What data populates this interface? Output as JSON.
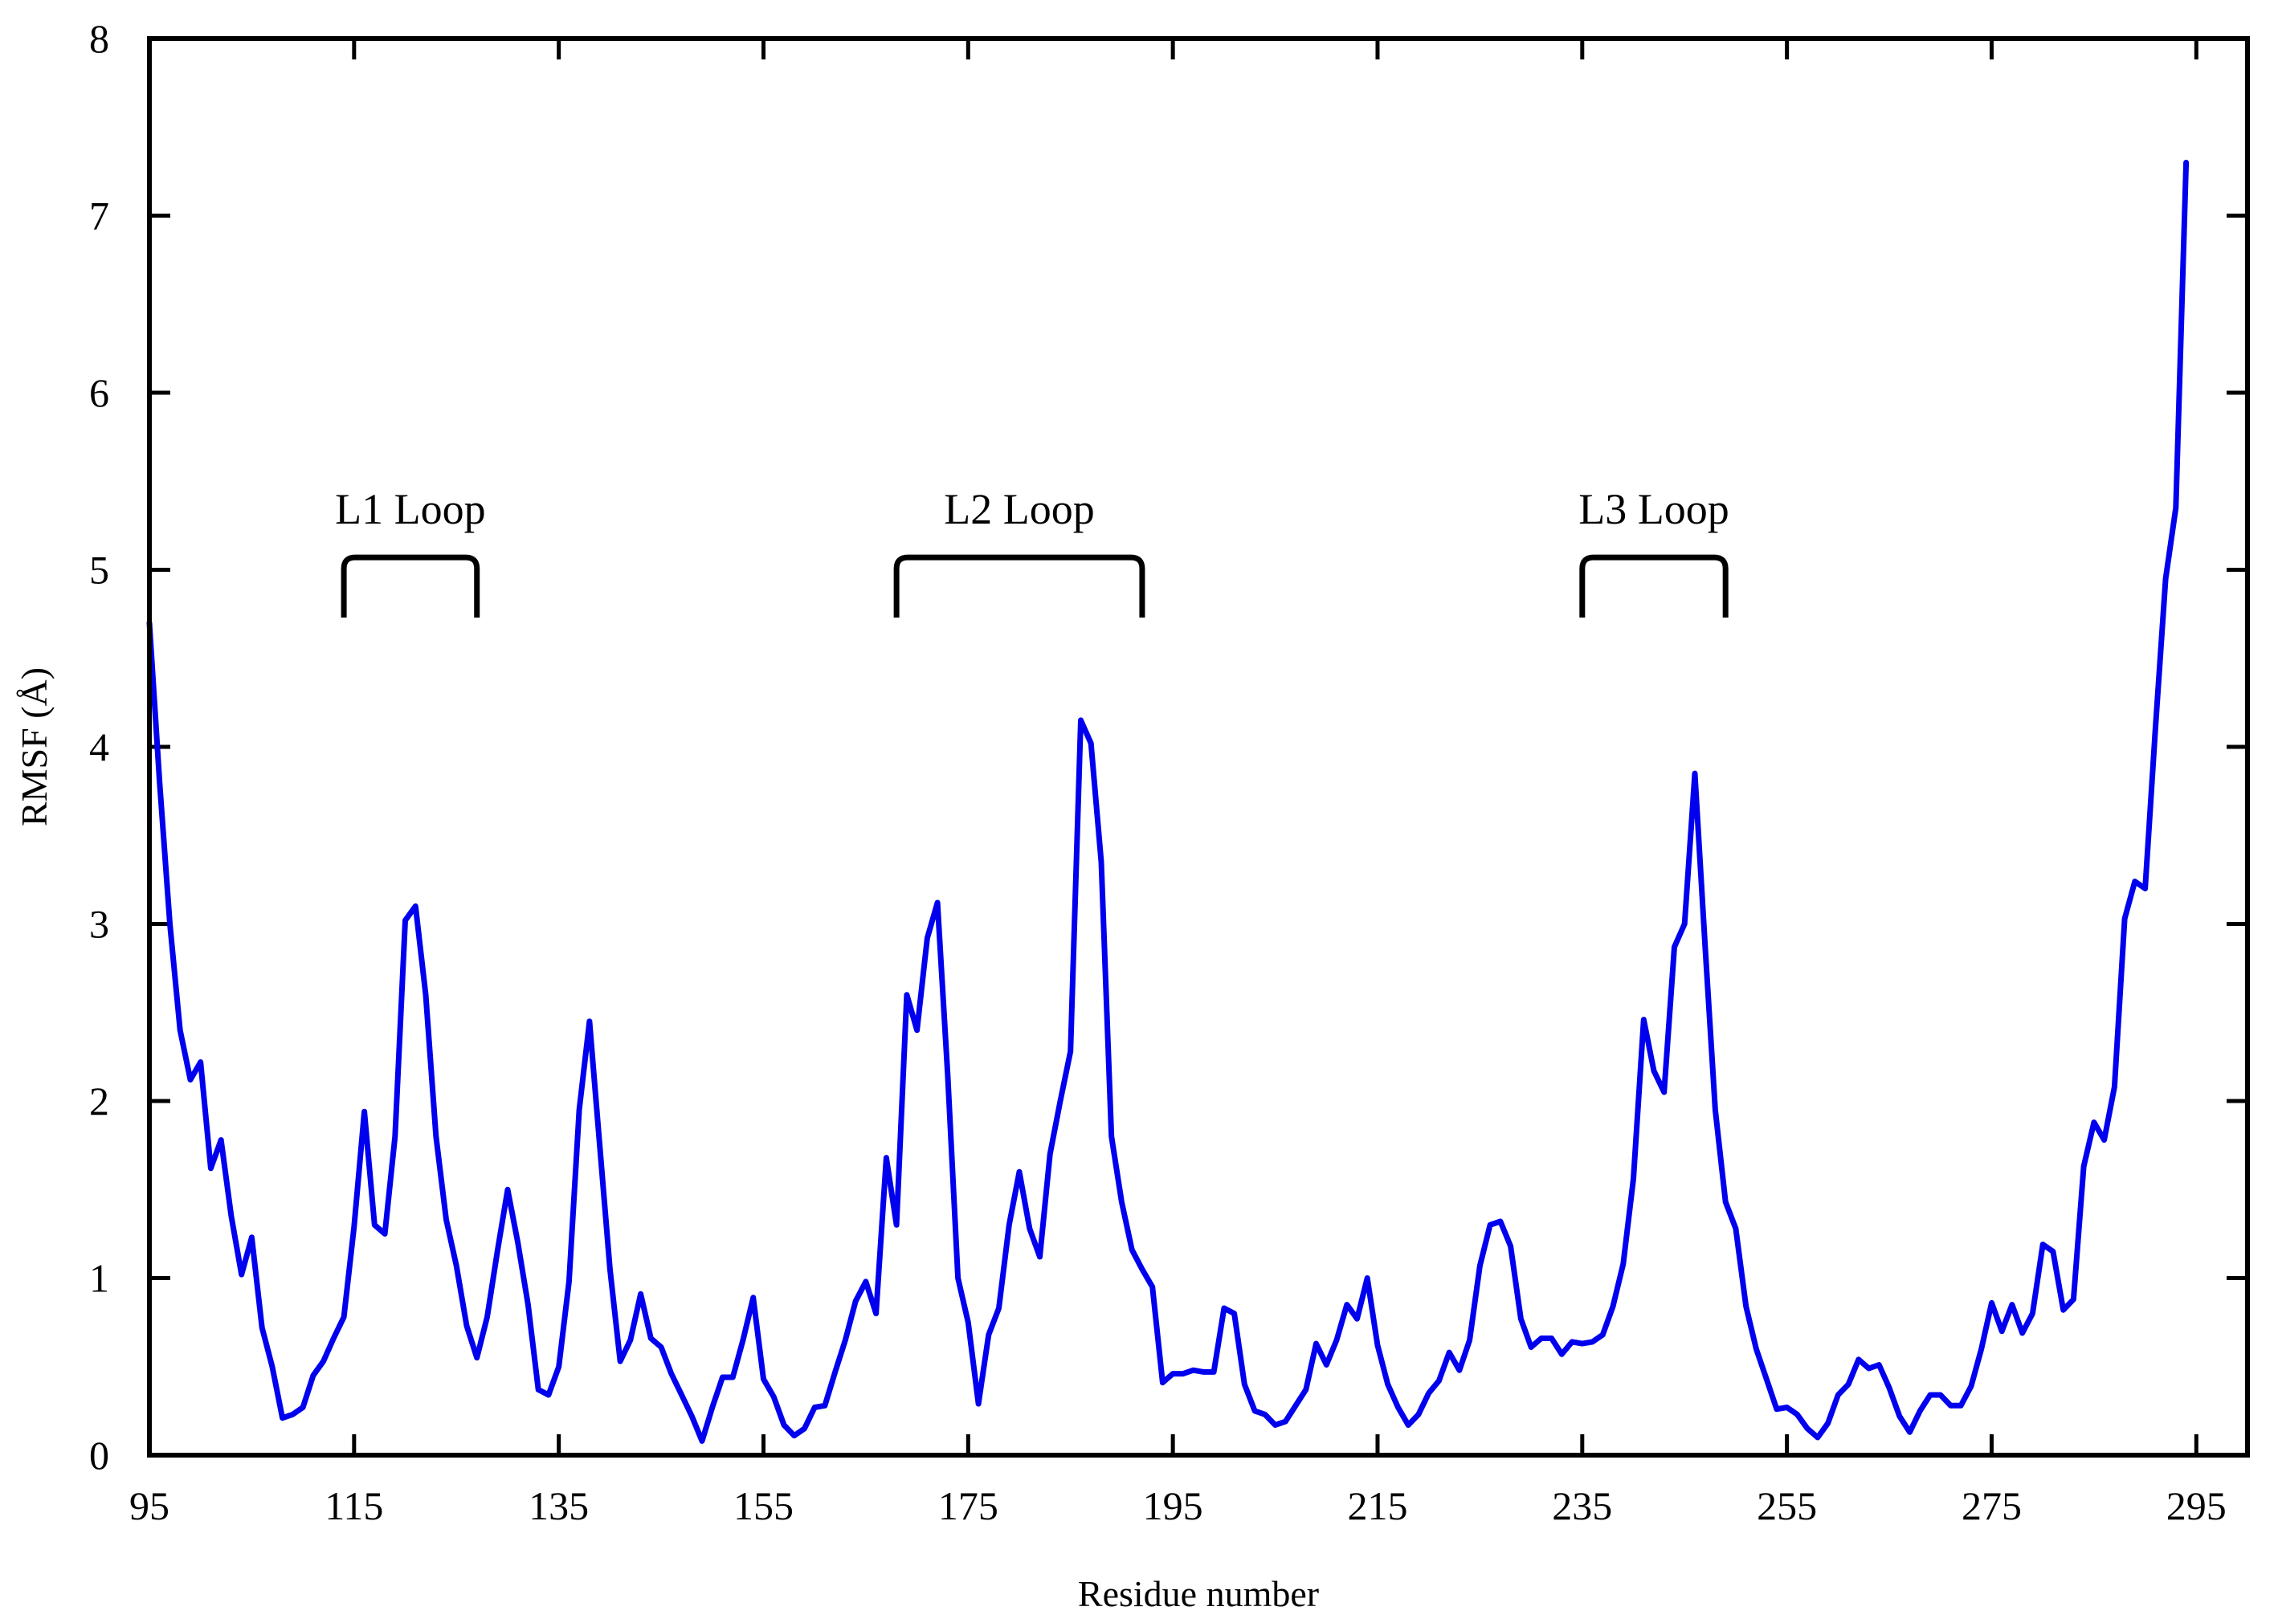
{
  "chart_data": {
    "type": "line",
    "title": "",
    "xlabel": "Residue number",
    "ylabel": "RMSF (Å)",
    "xlim": [
      95,
      300
    ],
    "ylim": [
      0,
      8
    ],
    "xticks": [
      95,
      115,
      135,
      155,
      175,
      195,
      215,
      235,
      255,
      275,
      295
    ],
    "yticks": [
      0,
      1,
      2,
      3,
      4,
      5,
      6,
      7,
      8
    ],
    "grid": false,
    "legend": "none",
    "line_color": "#0000ee",
    "annotation_color": "#000000",
    "series": [
      {
        "x": [
          95,
          96,
          97,
          98,
          99,
          100,
          101,
          102,
          103,
          104,
          105,
          106,
          107,
          108,
          109,
          110,
          111,
          112,
          113,
          114,
          115,
          116,
          117,
          118,
          119,
          120,
          121,
          122,
          123,
          124,
          125,
          126,
          127,
          128,
          129,
          130,
          131,
          132,
          133,
          134,
          135,
          136,
          137,
          138,
          139,
          140,
          141,
          142,
          143,
          144,
          145,
          146,
          147,
          148,
          149,
          150,
          151,
          152,
          153,
          154,
          155,
          156,
          157,
          158,
          159,
          160,
          161,
          162,
          163,
          164,
          165,
          166,
          167,
          168,
          169,
          170,
          171,
          172,
          173,
          174,
          175,
          176,
          177,
          178,
          179,
          180,
          181,
          182,
          183,
          184,
          185,
          186,
          187,
          188,
          189,
          190,
          191,
          192,
          193,
          194,
          195,
          196,
          197,
          198,
          199,
          200,
          201,
          202,
          203,
          204,
          205,
          206,
          207,
          208,
          209,
          210,
          211,
          212,
          213,
          214,
          215,
          216,
          217,
          218,
          219,
          220,
          221,
          222,
          223,
          224,
          225,
          226,
          227,
          228,
          229,
          230,
          231,
          232,
          233,
          234,
          235,
          236,
          237,
          238,
          239,
          240,
          241,
          242,
          243,
          244,
          245,
          246,
          247,
          248,
          249,
          250,
          251,
          252,
          253,
          254,
          255,
          256,
          257,
          258,
          259,
          260,
          261,
          262,
          263,
          264,
          265,
          266,
          267,
          268,
          269,
          270,
          271,
          272,
          273,
          274,
          275,
          276,
          277,
          278,
          279,
          280,
          281,
          282,
          283,
          284,
          285,
          286,
          287,
          288,
          289,
          290,
          291,
          292,
          293,
          294
        ],
        "y": [
          4.7,
          3.8,
          3.0,
          2.4,
          2.12,
          2.22,
          1.62,
          1.78,
          1.35,
          1.02,
          1.23,
          0.72,
          0.5,
          0.21,
          0.23,
          0.27,
          0.45,
          0.53,
          0.66,
          0.78,
          1.29,
          1.94,
          1.3,
          1.25,
          1.8,
          3.02,
          3.1,
          2.6,
          1.8,
          1.33,
          1.07,
          0.73,
          0.55,
          0.78,
          1.15,
          1.5,
          1.2,
          0.85,
          0.37,
          0.34,
          0.5,
          0.98,
          1.95,
          2.45,
          1.75,
          1.05,
          0.53,
          0.65,
          0.91,
          0.66,
          0.61,
          0.46,
          0.34,
          0.22,
          0.08,
          0.27,
          0.44,
          0.44,
          0.65,
          0.89,
          0.43,
          0.33,
          0.17,
          0.11,
          0.15,
          0.27,
          0.28,
          0.47,
          0.65,
          0.87,
          0.98,
          0.8,
          1.68,
          1.3,
          2.6,
          2.4,
          2.92,
          3.12,
          2.15,
          1.0,
          0.75,
          0.29,
          0.68,
          0.83,
          1.3,
          1.6,
          1.28,
          1.12,
          1.7,
          2.0,
          2.28,
          4.15,
          4.02,
          3.35,
          1.8,
          1.43,
          1.16,
          1.05,
          0.95,
          0.41,
          0.46,
          0.46,
          0.48,
          0.47,
          0.47,
          0.83,
          0.8,
          0.4,
          0.25,
          0.23,
          0.17,
          0.19,
          0.28,
          0.37,
          0.63,
          0.51,
          0.65,
          0.85,
          0.77,
          1.0,
          0.62,
          0.4,
          0.27,
          0.17,
          0.23,
          0.35,
          0.42,
          0.58,
          0.48,
          0.65,
          1.07,
          1.3,
          1.32,
          1.18,
          0.77,
          0.61,
          0.66,
          0.66,
          0.57,
          0.64,
          0.63,
          0.64,
          0.68,
          0.84,
          1.08,
          1.56,
          2.46,
          2.17,
          2.05,
          2.87,
          3.0,
          3.85,
          2.88,
          1.95,
          1.43,
          1.28,
          0.84,
          0.6,
          0.43,
          0.26,
          0.27,
          0.23,
          0.15,
          0.1,
          0.18,
          0.34,
          0.4,
          0.54,
          0.49,
          0.51,
          0.38,
          0.22,
          0.13,
          0.25,
          0.34,
          0.34,
          0.28,
          0.28,
          0.39,
          0.6,
          0.86,
          0.7,
          0.85,
          0.69,
          0.8,
          1.19,
          1.15,
          0.82,
          0.88,
          1.63,
          1.88,
          1.78,
          2.08,
          3.03,
          3.24,
          3.2,
          4.1,
          4.95,
          5.35,
          7.3
        ]
      }
    ],
    "annotations": [
      {
        "label": "L1 Loop",
        "x_start": 114,
        "x_end": 127
      },
      {
        "label": "L2 Loop",
        "x_start": 168,
        "x_end": 192
      },
      {
        "label": "L3 Loop",
        "x_start": 235,
        "x_end": 249
      }
    ]
  }
}
